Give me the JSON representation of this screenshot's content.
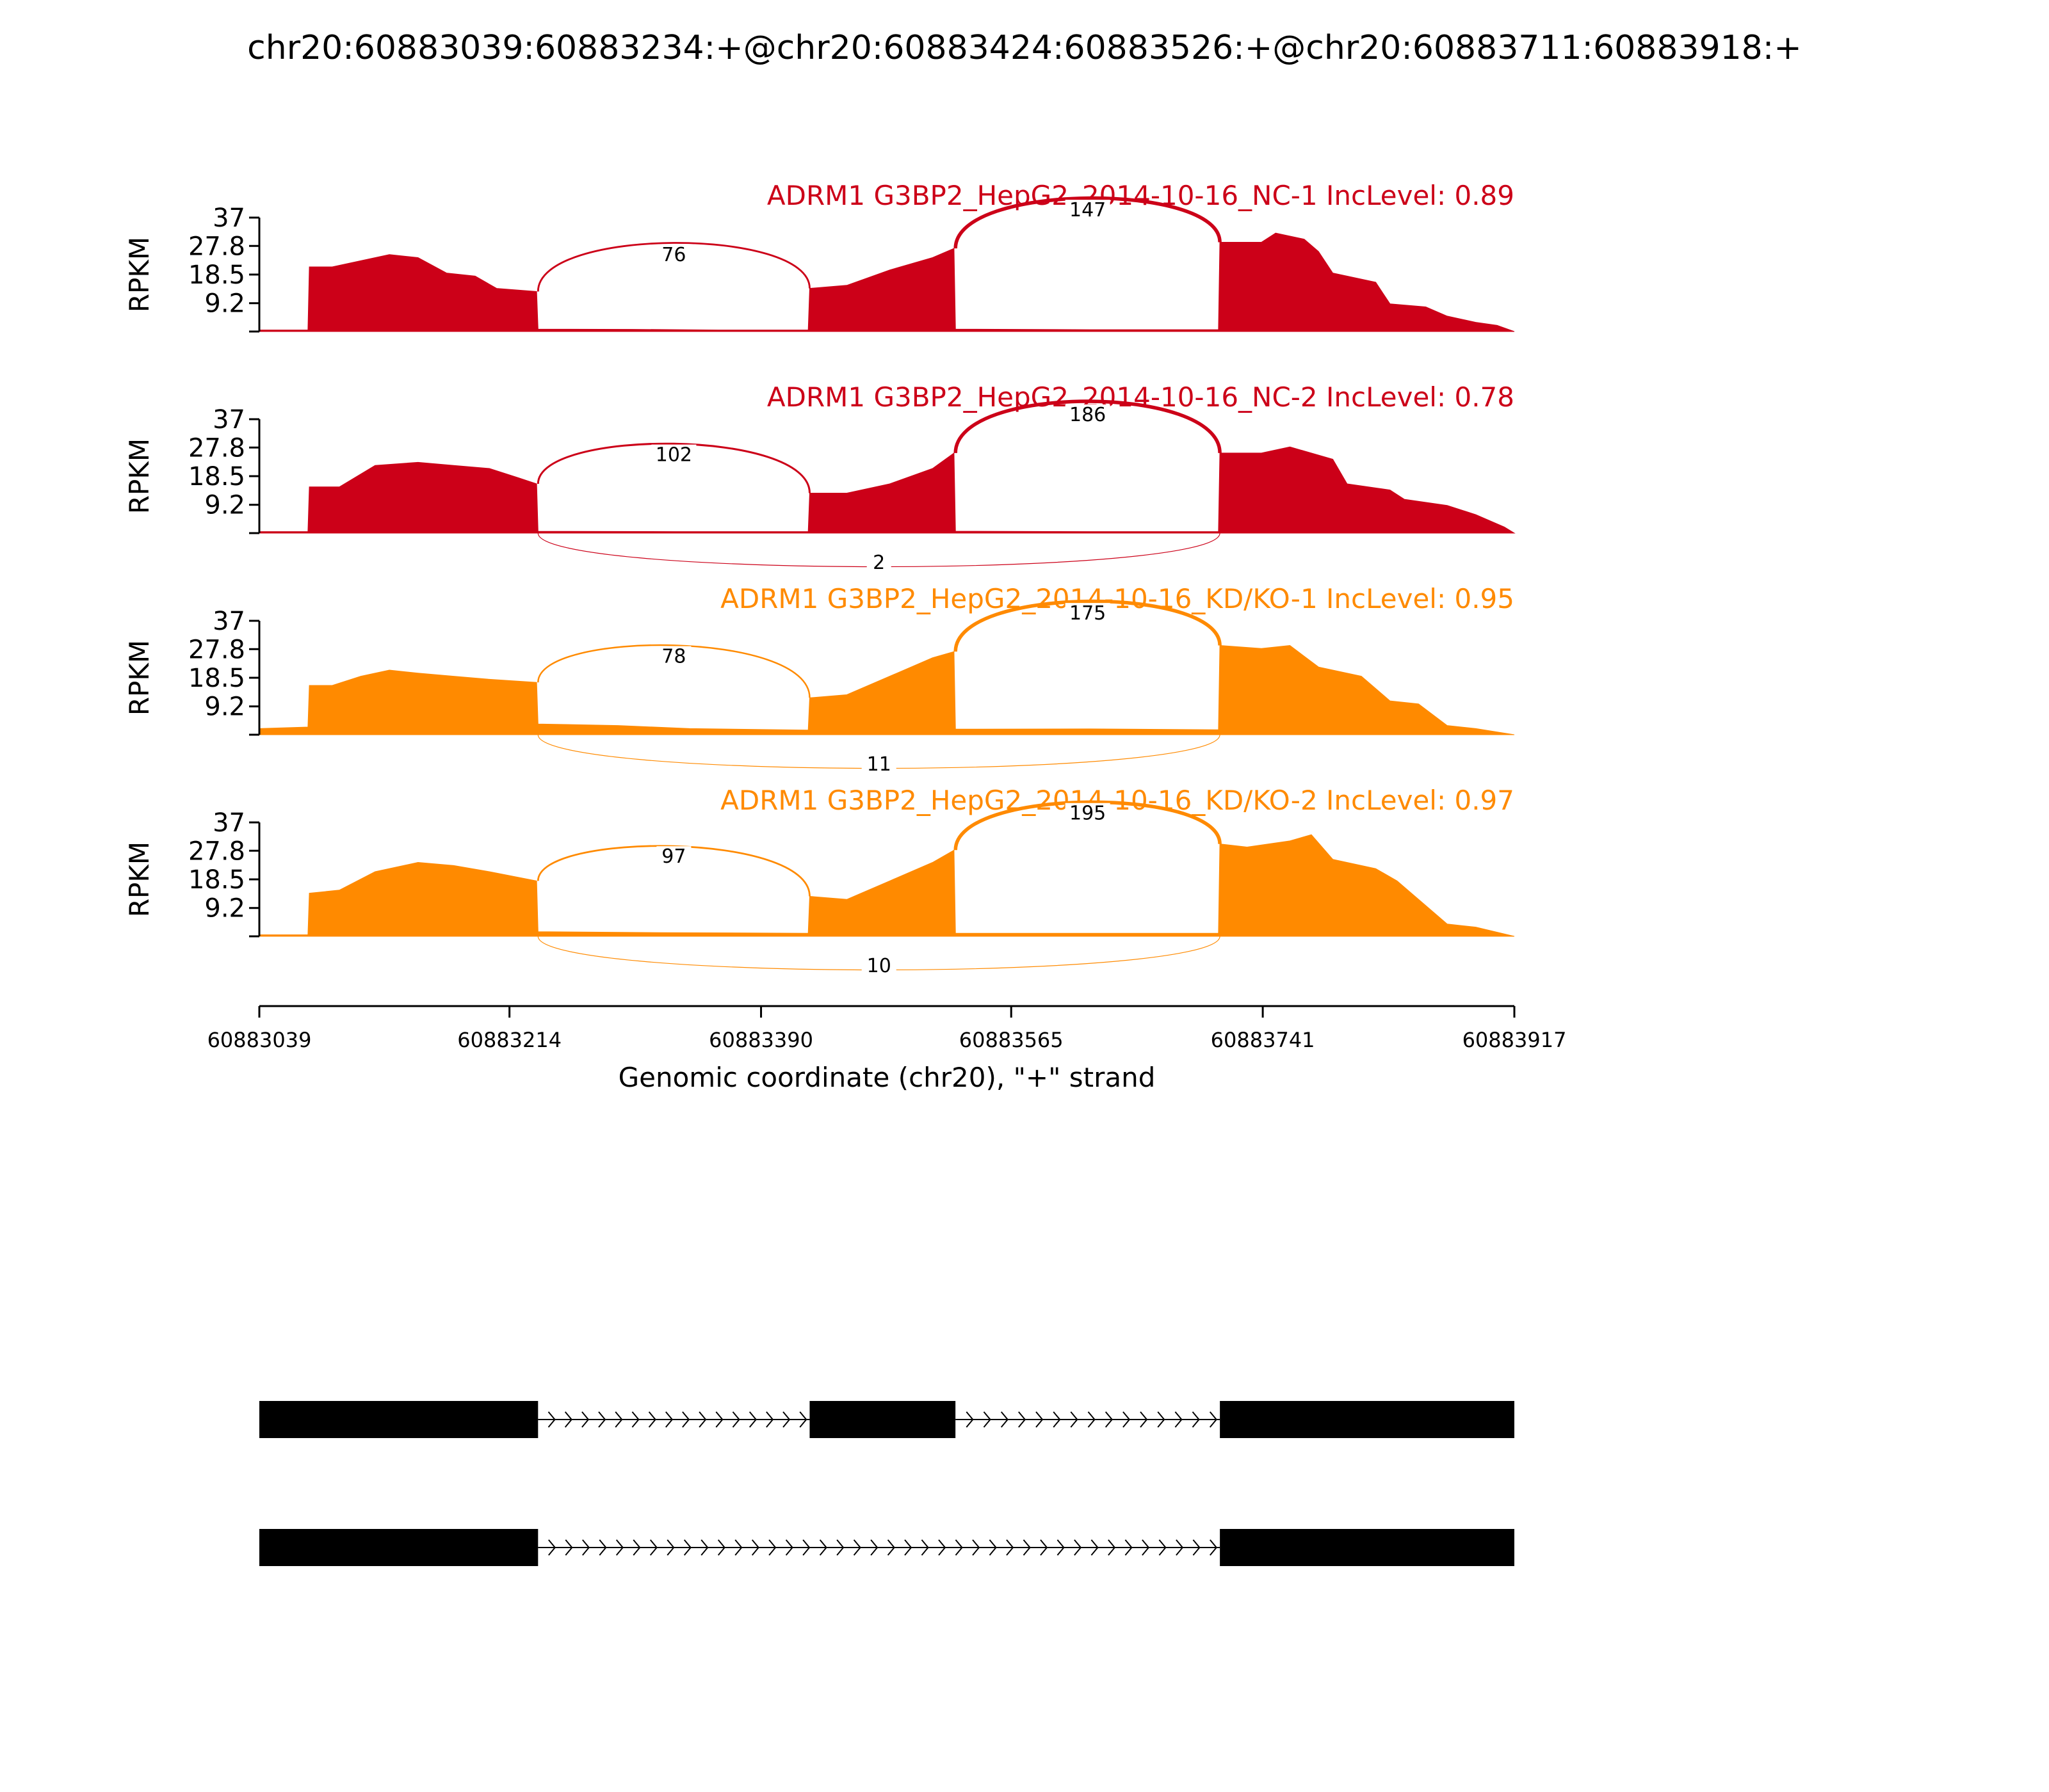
{
  "chart_data": {
    "type": "area",
    "title": "chr20:60883039:60883234:+@chr20:60883424:60883526:+@chr20:60883711:60883918:+",
    "xlabel": "Genomic coordinate (chr20), \"+\" strand",
    "ylabel": "RPKM",
    "xlim": [
      60883039,
      60883917
    ],
    "ylim": [
      0,
      37
    ],
    "x_ticks": [
      "60883039",
      "60883214",
      "60883390",
      "60883565",
      "60883741",
      "60883917"
    ],
    "y_ticks": [
      "9.2",
      "18.5",
      "27.8",
      "37"
    ],
    "colors": {
      "nc": "#cc0018",
      "kd": "#ff8a00",
      "ink": "#000000"
    },
    "samples": [
      {
        "label": "ADRM1 G3BP2_HepG2_2014-10-16_NC-1 IncLevel: 0.89",
        "group": "nc",
        "coverage": [
          [
            60883039,
            0.5
          ],
          [
            60883073,
            0.5
          ],
          [
            60883074,
            21
          ],
          [
            60883090,
            21
          ],
          [
            60883110,
            23
          ],
          [
            60883130,
            25
          ],
          [
            60883150,
            24
          ],
          [
            60883170,
            19
          ],
          [
            60883190,
            18
          ],
          [
            60883205,
            14
          ],
          [
            60883233,
            13
          ],
          [
            60883234,
            0.8
          ],
          [
            60883300,
            0.7
          ],
          [
            60883360,
            0.5
          ],
          [
            60883423,
            0.5
          ],
          [
            60883424,
            14
          ],
          [
            60883450,
            15
          ],
          [
            60883480,
            20
          ],
          [
            60883510,
            24
          ],
          [
            60883525,
            27
          ],
          [
            60883526,
            0.8
          ],
          [
            60883620,
            0.6
          ],
          [
            60883710,
            0.6
          ],
          [
            60883711,
            29
          ],
          [
            60883740,
            29
          ],
          [
            60883750,
            32
          ],
          [
            60883770,
            30
          ],
          [
            60883780,
            26
          ],
          [
            60883790,
            19
          ],
          [
            60883820,
            16
          ],
          [
            60883830,
            9
          ],
          [
            60883855,
            8
          ],
          [
            60883870,
            5
          ],
          [
            60883890,
            3
          ],
          [
            60883905,
            2
          ],
          [
            60883917,
            0
          ]
        ],
        "junctions": [
          {
            "start": 60883234,
            "end": 60883424,
            "count": "76",
            "side": "top"
          },
          {
            "start": 60883526,
            "end": 60883711,
            "count": "147",
            "side": "top"
          }
        ]
      },
      {
        "label": "ADRM1 G3BP2_HepG2_2014-10-16_NC-2 IncLevel: 0.78",
        "group": "nc",
        "coverage": [
          [
            60883039,
            0.5
          ],
          [
            60883073,
            0.5
          ],
          [
            60883074,
            15
          ],
          [
            60883095,
            15
          ],
          [
            60883120,
            22
          ],
          [
            60883150,
            23
          ],
          [
            60883175,
            22
          ],
          [
            60883200,
            21
          ],
          [
            60883220,
            18
          ],
          [
            60883233,
            16
          ],
          [
            60883234,
            0.6
          ],
          [
            60883330,
            0.5
          ],
          [
            60883423,
            0.5
          ],
          [
            60883424,
            13
          ],
          [
            60883450,
            13
          ],
          [
            60883480,
            16
          ],
          [
            60883510,
            21
          ],
          [
            60883525,
            26
          ],
          [
            60883526,
            0.6
          ],
          [
            60883620,
            0.5
          ],
          [
            60883710,
            0.5
          ],
          [
            60883711,
            26
          ],
          [
            60883740,
            26
          ],
          [
            60883760,
            28
          ],
          [
            60883790,
            24
          ],
          [
            60883800,
            16
          ],
          [
            60883830,
            14
          ],
          [
            60883840,
            11
          ],
          [
            60883870,
            9
          ],
          [
            60883890,
            6
          ],
          [
            60883910,
            2
          ],
          [
            60883917,
            0
          ]
        ],
        "junctions": [
          {
            "start": 60883234,
            "end": 60883424,
            "count": "102",
            "side": "top"
          },
          {
            "start": 60883526,
            "end": 60883711,
            "count": "186",
            "side": "top"
          },
          {
            "start": 60883234,
            "end": 60883711,
            "count": "2",
            "side": "bottom"
          }
        ]
      },
      {
        "label": "ADRM1 G3BP2_HepG2_2014-10-16_KD/KO-1 IncLevel: 0.95",
        "group": "kd",
        "coverage": [
          [
            60883039,
            2
          ],
          [
            60883073,
            2.5
          ],
          [
            60883074,
            16
          ],
          [
            60883090,
            16
          ],
          [
            60883110,
            19
          ],
          [
            60883130,
            21
          ],
          [
            60883150,
            20
          ],
          [
            60883175,
            19
          ],
          [
            60883200,
            18
          ],
          [
            60883233,
            17
          ],
          [
            60883234,
            3.5
          ],
          [
            60883290,
            3
          ],
          [
            60883340,
            2
          ],
          [
            60883423,
            1.5
          ],
          [
            60883424,
            12
          ],
          [
            60883450,
            13
          ],
          [
            60883480,
            19
          ],
          [
            60883510,
            25
          ],
          [
            60883525,
            27
          ],
          [
            60883526,
            1.8
          ],
          [
            60883620,
            1.9
          ],
          [
            60883710,
            1.6
          ],
          [
            60883711,
            29
          ],
          [
            60883740,
            28
          ],
          [
            60883760,
            29
          ],
          [
            60883780,
            22
          ],
          [
            60883810,
            19
          ],
          [
            60883830,
            11
          ],
          [
            60883850,
            10
          ],
          [
            60883870,
            3
          ],
          [
            60883890,
            2
          ],
          [
            60883917,
            0
          ]
        ],
        "junctions": [
          {
            "start": 60883234,
            "end": 60883424,
            "count": "78",
            "side": "top"
          },
          {
            "start": 60883526,
            "end": 60883711,
            "count": "175",
            "side": "top"
          },
          {
            "start": 60883234,
            "end": 60883711,
            "count": "11",
            "side": "bottom"
          }
        ]
      },
      {
        "label": "ADRM1 G3BP2_HepG2_2014-10-16_KD/KO-2 IncLevel: 0.97",
        "group": "kd",
        "coverage": [
          [
            60883039,
            0.5
          ],
          [
            60883073,
            0.5
          ],
          [
            60883074,
            14
          ],
          [
            60883095,
            15
          ],
          [
            60883120,
            21
          ],
          [
            60883150,
            24
          ],
          [
            60883175,
            23
          ],
          [
            60883200,
            21
          ],
          [
            60883233,
            18
          ],
          [
            60883234,
            1.5
          ],
          [
            60883320,
            1.2
          ],
          [
            60883423,
            1
          ],
          [
            60883424,
            13
          ],
          [
            60883450,
            12
          ],
          [
            60883480,
            18
          ],
          [
            60883510,
            24
          ],
          [
            60883525,
            28
          ],
          [
            60883526,
            1
          ],
          [
            60883620,
            1
          ],
          [
            60883710,
            1
          ],
          [
            60883711,
            30
          ],
          [
            60883730,
            29
          ],
          [
            60883760,
            31
          ],
          [
            60883775,
            33
          ],
          [
            60883790,
            25
          ],
          [
            60883820,
            22
          ],
          [
            60883835,
            18
          ],
          [
            60883855,
            10
          ],
          [
            60883870,
            4
          ],
          [
            60883890,
            3
          ],
          [
            60883917,
            0
          ]
        ],
        "junctions": [
          {
            "start": 60883234,
            "end": 60883424,
            "count": "97",
            "side": "top"
          },
          {
            "start": 60883526,
            "end": 60883711,
            "count": "195",
            "side": "top"
          },
          {
            "start": 60883234,
            "end": 60883711,
            "count": "10",
            "side": "bottom"
          }
        ]
      }
    ],
    "isoforms": [
      [
        [
          60883039,
          60883234
        ],
        [
          60883424,
          60883526
        ],
        [
          60883711,
          60883917
        ]
      ],
      [
        [
          60883039,
          60883234
        ],
        [
          60883711,
          60883917
        ]
      ]
    ]
  }
}
